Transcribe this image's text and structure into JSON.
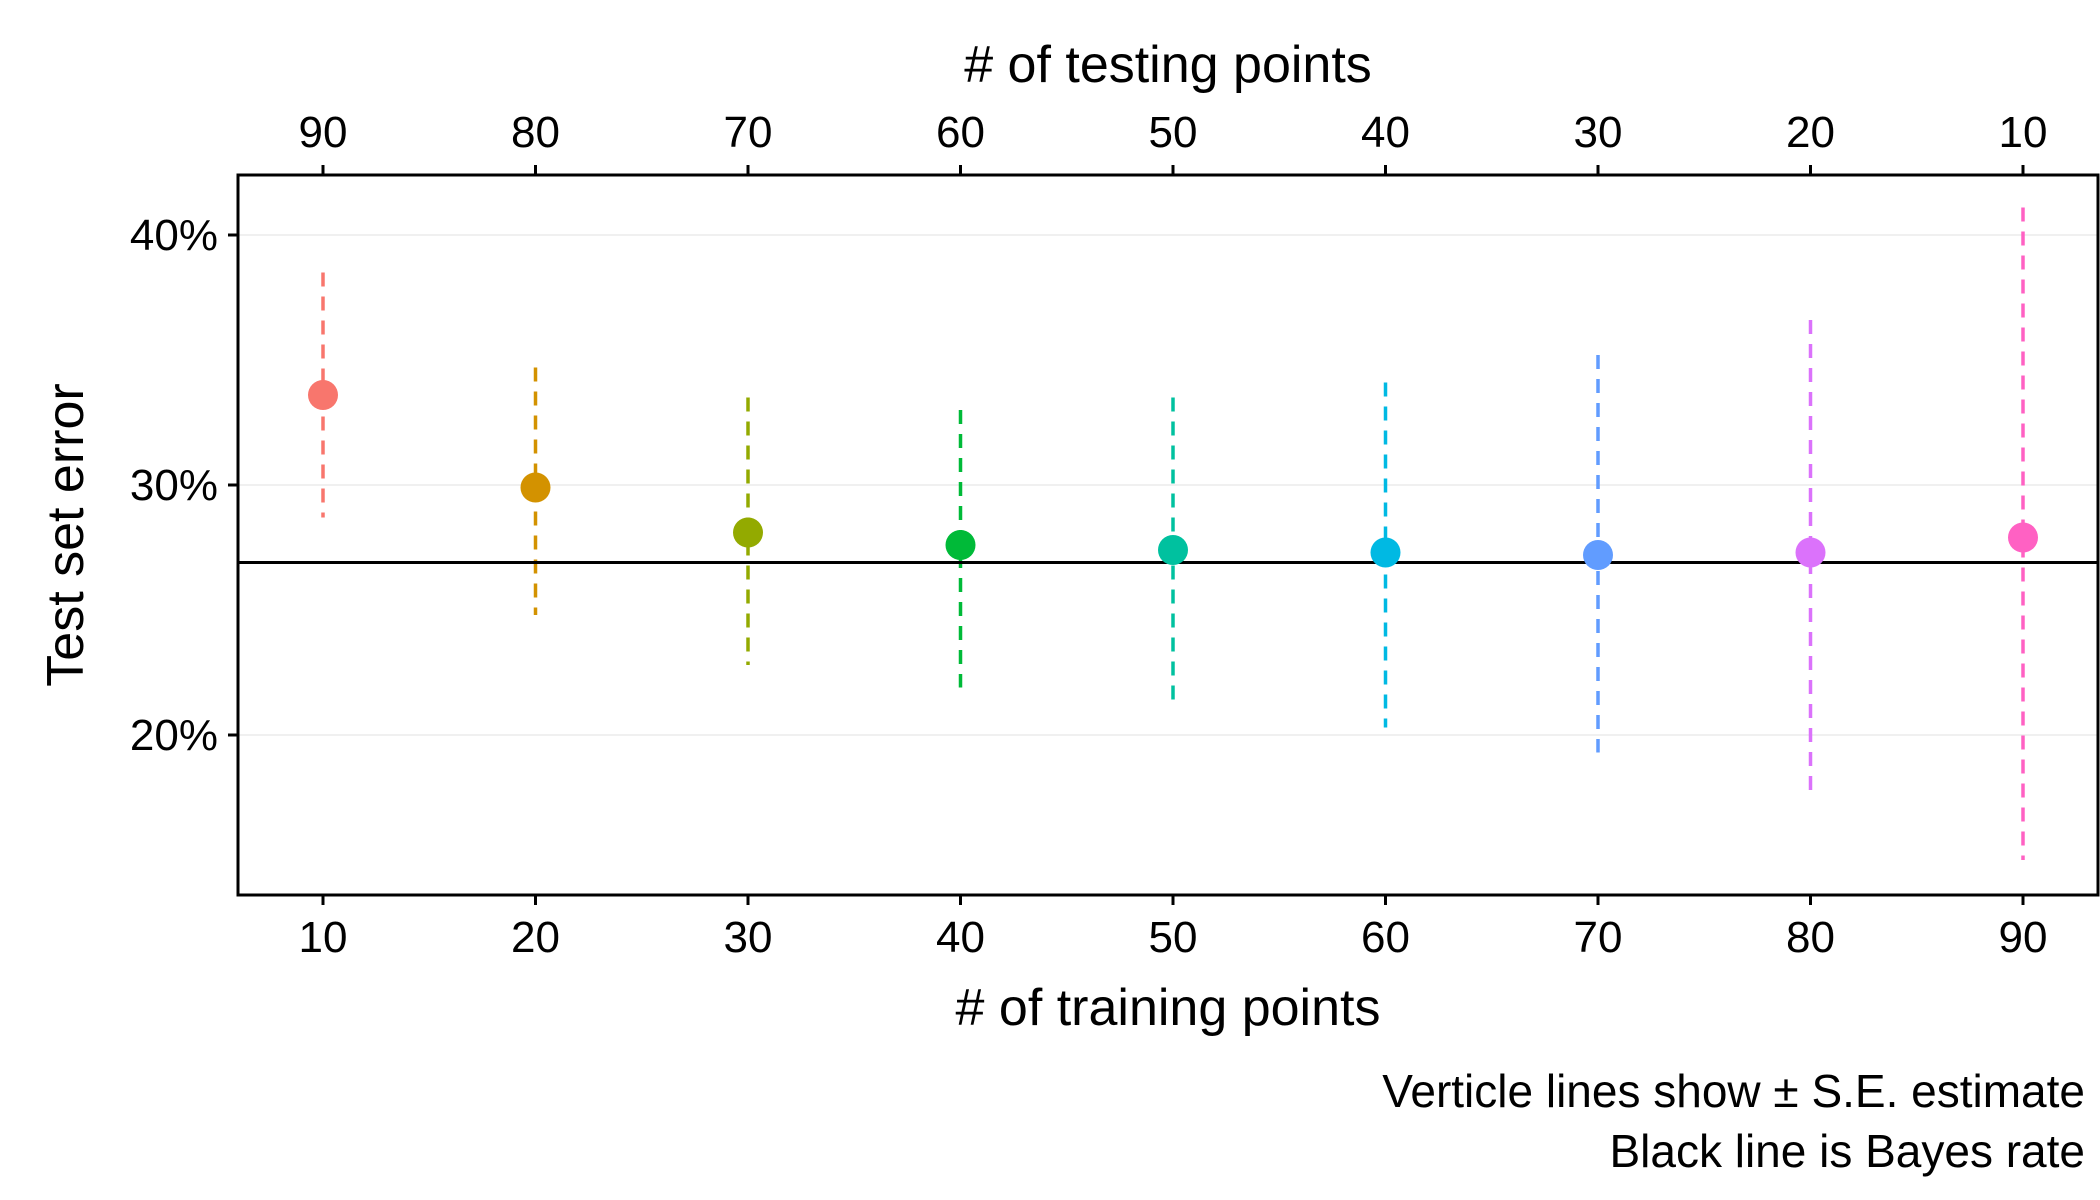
{
  "chart_data": {
    "type": "scatter",
    "x": [
      10,
      20,
      30,
      40,
      50,
      60,
      70,
      80,
      90
    ],
    "x_top": [
      90,
      80,
      70,
      60,
      50,
      40,
      30,
      20,
      10
    ],
    "y": [
      0.336,
      0.299,
      0.281,
      0.276,
      0.274,
      0.273,
      0.272,
      0.273,
      0.279
    ],
    "y_lower": [
      0.287,
      0.248,
      0.228,
      0.219,
      0.211,
      0.203,
      0.193,
      0.178,
      0.15
    ],
    "y_upper": [
      0.385,
      0.347,
      0.335,
      0.33,
      0.335,
      0.341,
      0.352,
      0.366,
      0.411
    ],
    "colors": [
      "#F8766D",
      "#D39200",
      "#93AA00",
      "#00BA38",
      "#00C19F",
      "#00B9E3",
      "#619CFF",
      "#DB72FB",
      "#FF61C3"
    ],
    "bayes_rate": 0.269,
    "xlabel": "# of training points",
    "xlabel_top": "# of testing points",
    "ylabel": "Test set error",
    "x_ticks": [
      "10",
      "20",
      "30",
      "40",
      "50",
      "60",
      "70",
      "80",
      "90"
    ],
    "x_top_ticks": [
      "90",
      "80",
      "70",
      "60",
      "50",
      "40",
      "30",
      "20",
      "10"
    ],
    "y_ticks": [
      0.2,
      0.3,
      0.4
    ],
    "y_tick_labels": [
      "20%",
      "30%",
      "40%"
    ],
    "xlim": [
      6,
      94
    ],
    "ylim": [
      0.136,
      0.424
    ],
    "grid": "horizontal",
    "line_color": "#000000",
    "caption": [
      "Verticle lines show ± S.E. estimate",
      "Black line is Bayes rate"
    ]
  }
}
